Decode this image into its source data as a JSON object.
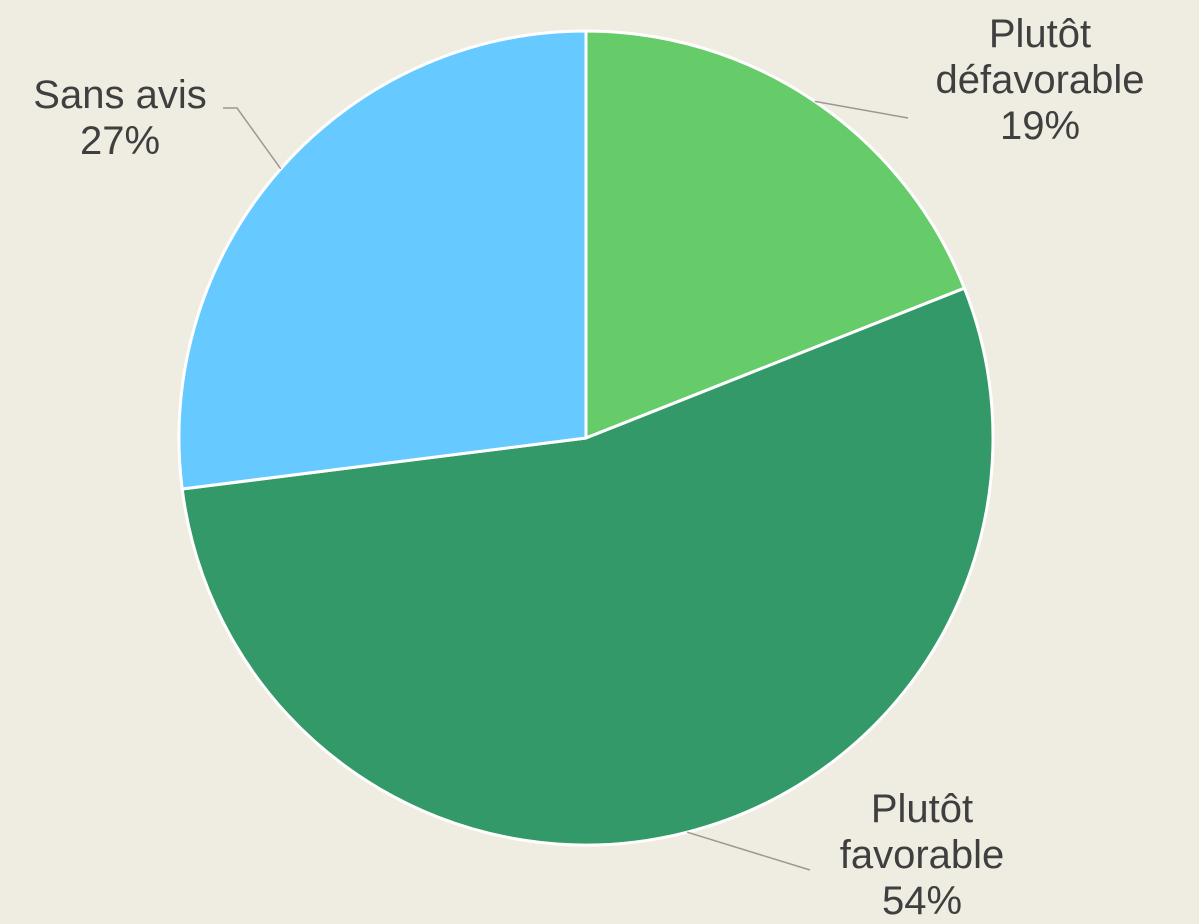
{
  "chart_data": {
    "type": "pie",
    "categories": [
      "Plutôt défavorable",
      "Plutôt favorable",
      "Sans avis"
    ],
    "values": [
      19,
      54,
      27
    ],
    "unit": "%",
    "slices": [
      {
        "name": "Plutôt défavorable",
        "label_lines": [
          "Plutôt",
          "défavorable",
          "19%"
        ],
        "value": 19,
        "color": "#66cc6a"
      },
      {
        "name": "Plutôt favorable",
        "label_lines": [
          "Plutôt",
          "favorable",
          "54%"
        ],
        "value": 54,
        "color": "#339968"
      },
      {
        "name": "Sans avis",
        "label_lines": [
          "Sans avis",
          "27%"
        ],
        "value": 27,
        "color": "#66c9ff"
      }
    ],
    "start_angle": "12 o'clock",
    "direction": "clockwise",
    "background": "#efece2",
    "label_color": "#3f3f3f"
  }
}
